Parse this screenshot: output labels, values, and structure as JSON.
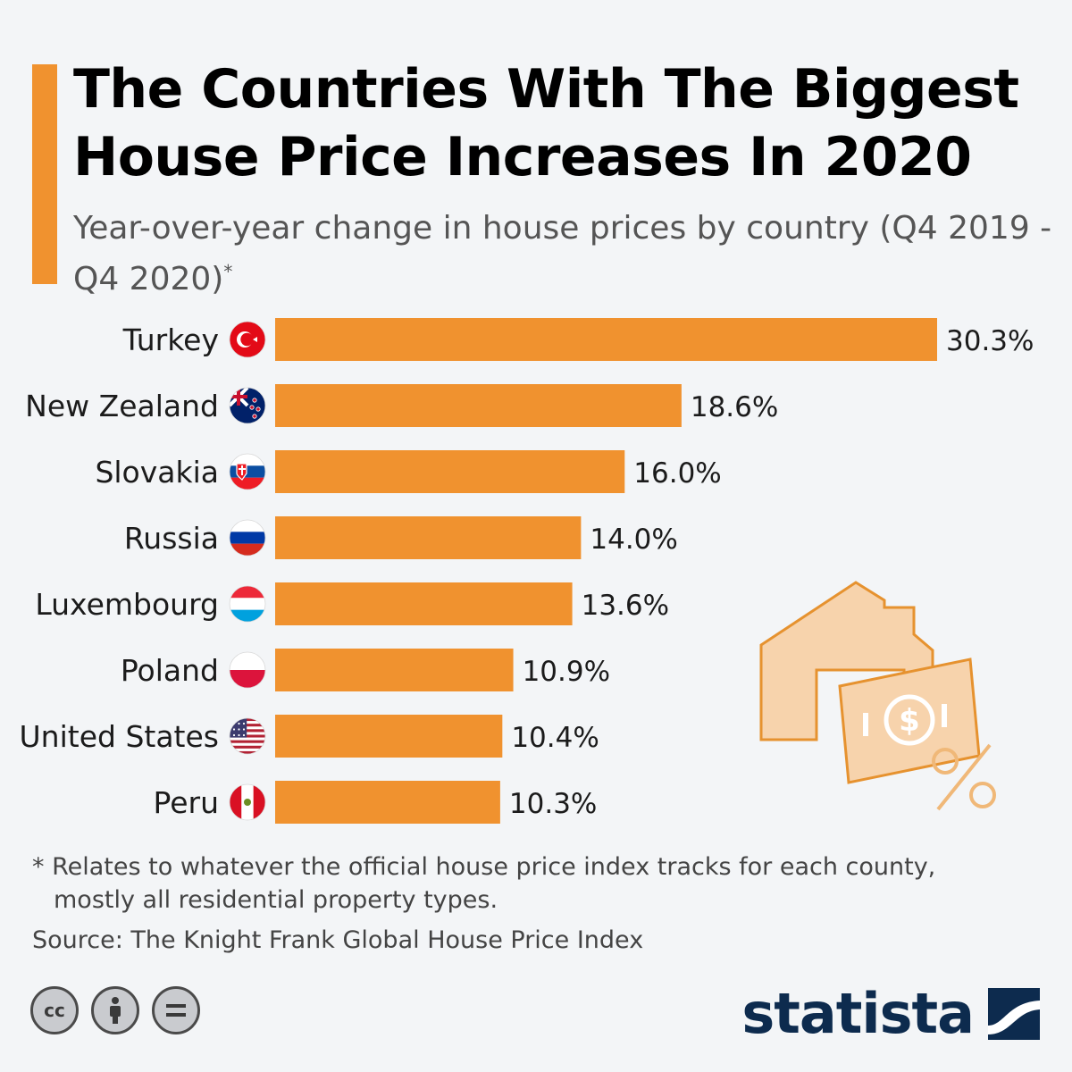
{
  "title": "The Countries With The Biggest House Price Increases In 2020",
  "subtitle": "Year-over-year change in house prices by country (Q4 2019 - Q4 2020)",
  "subtitle_ref": "*",
  "footnote_line1": "* Relates to whatever the official house price index tracks for each county,",
  "footnote_line2": "mostly all residential property types.",
  "source": "Source: The Knight Frank Global House Price Index",
  "logo": "statista",
  "license_icons": [
    "cc-icon",
    "attribution-icon",
    "no-derivatives-icon"
  ],
  "colors": {
    "bar": "#f0922f",
    "accent": "#f0922f",
    "logo": "#0d2b4e",
    "background": "#f3f5f7"
  },
  "chart_data": {
    "type": "bar",
    "orientation": "horizontal",
    "categories": [
      "Turkey",
      "New Zealand",
      "Slovakia",
      "Russia",
      "Luxembourg",
      "Poland",
      "United States",
      "Peru"
    ],
    "values": [
      30.3,
      18.6,
      16.0,
      14.0,
      13.6,
      10.9,
      10.4,
      10.3
    ],
    "value_labels": [
      "30.3%",
      "18.6%",
      "16.0%",
      "14.0%",
      "13.6%",
      "10.9%",
      "10.4%",
      "10.3%"
    ],
    "flags": [
      "turkey-flag-icon",
      "new-zealand-flag-icon",
      "slovakia-flag-icon",
      "russia-flag-icon",
      "luxembourg-flag-icon",
      "poland-flag-icon",
      "united-states-flag-icon",
      "peru-flag-icon"
    ],
    "unit": "%",
    "grid": false,
    "legend": "none"
  }
}
